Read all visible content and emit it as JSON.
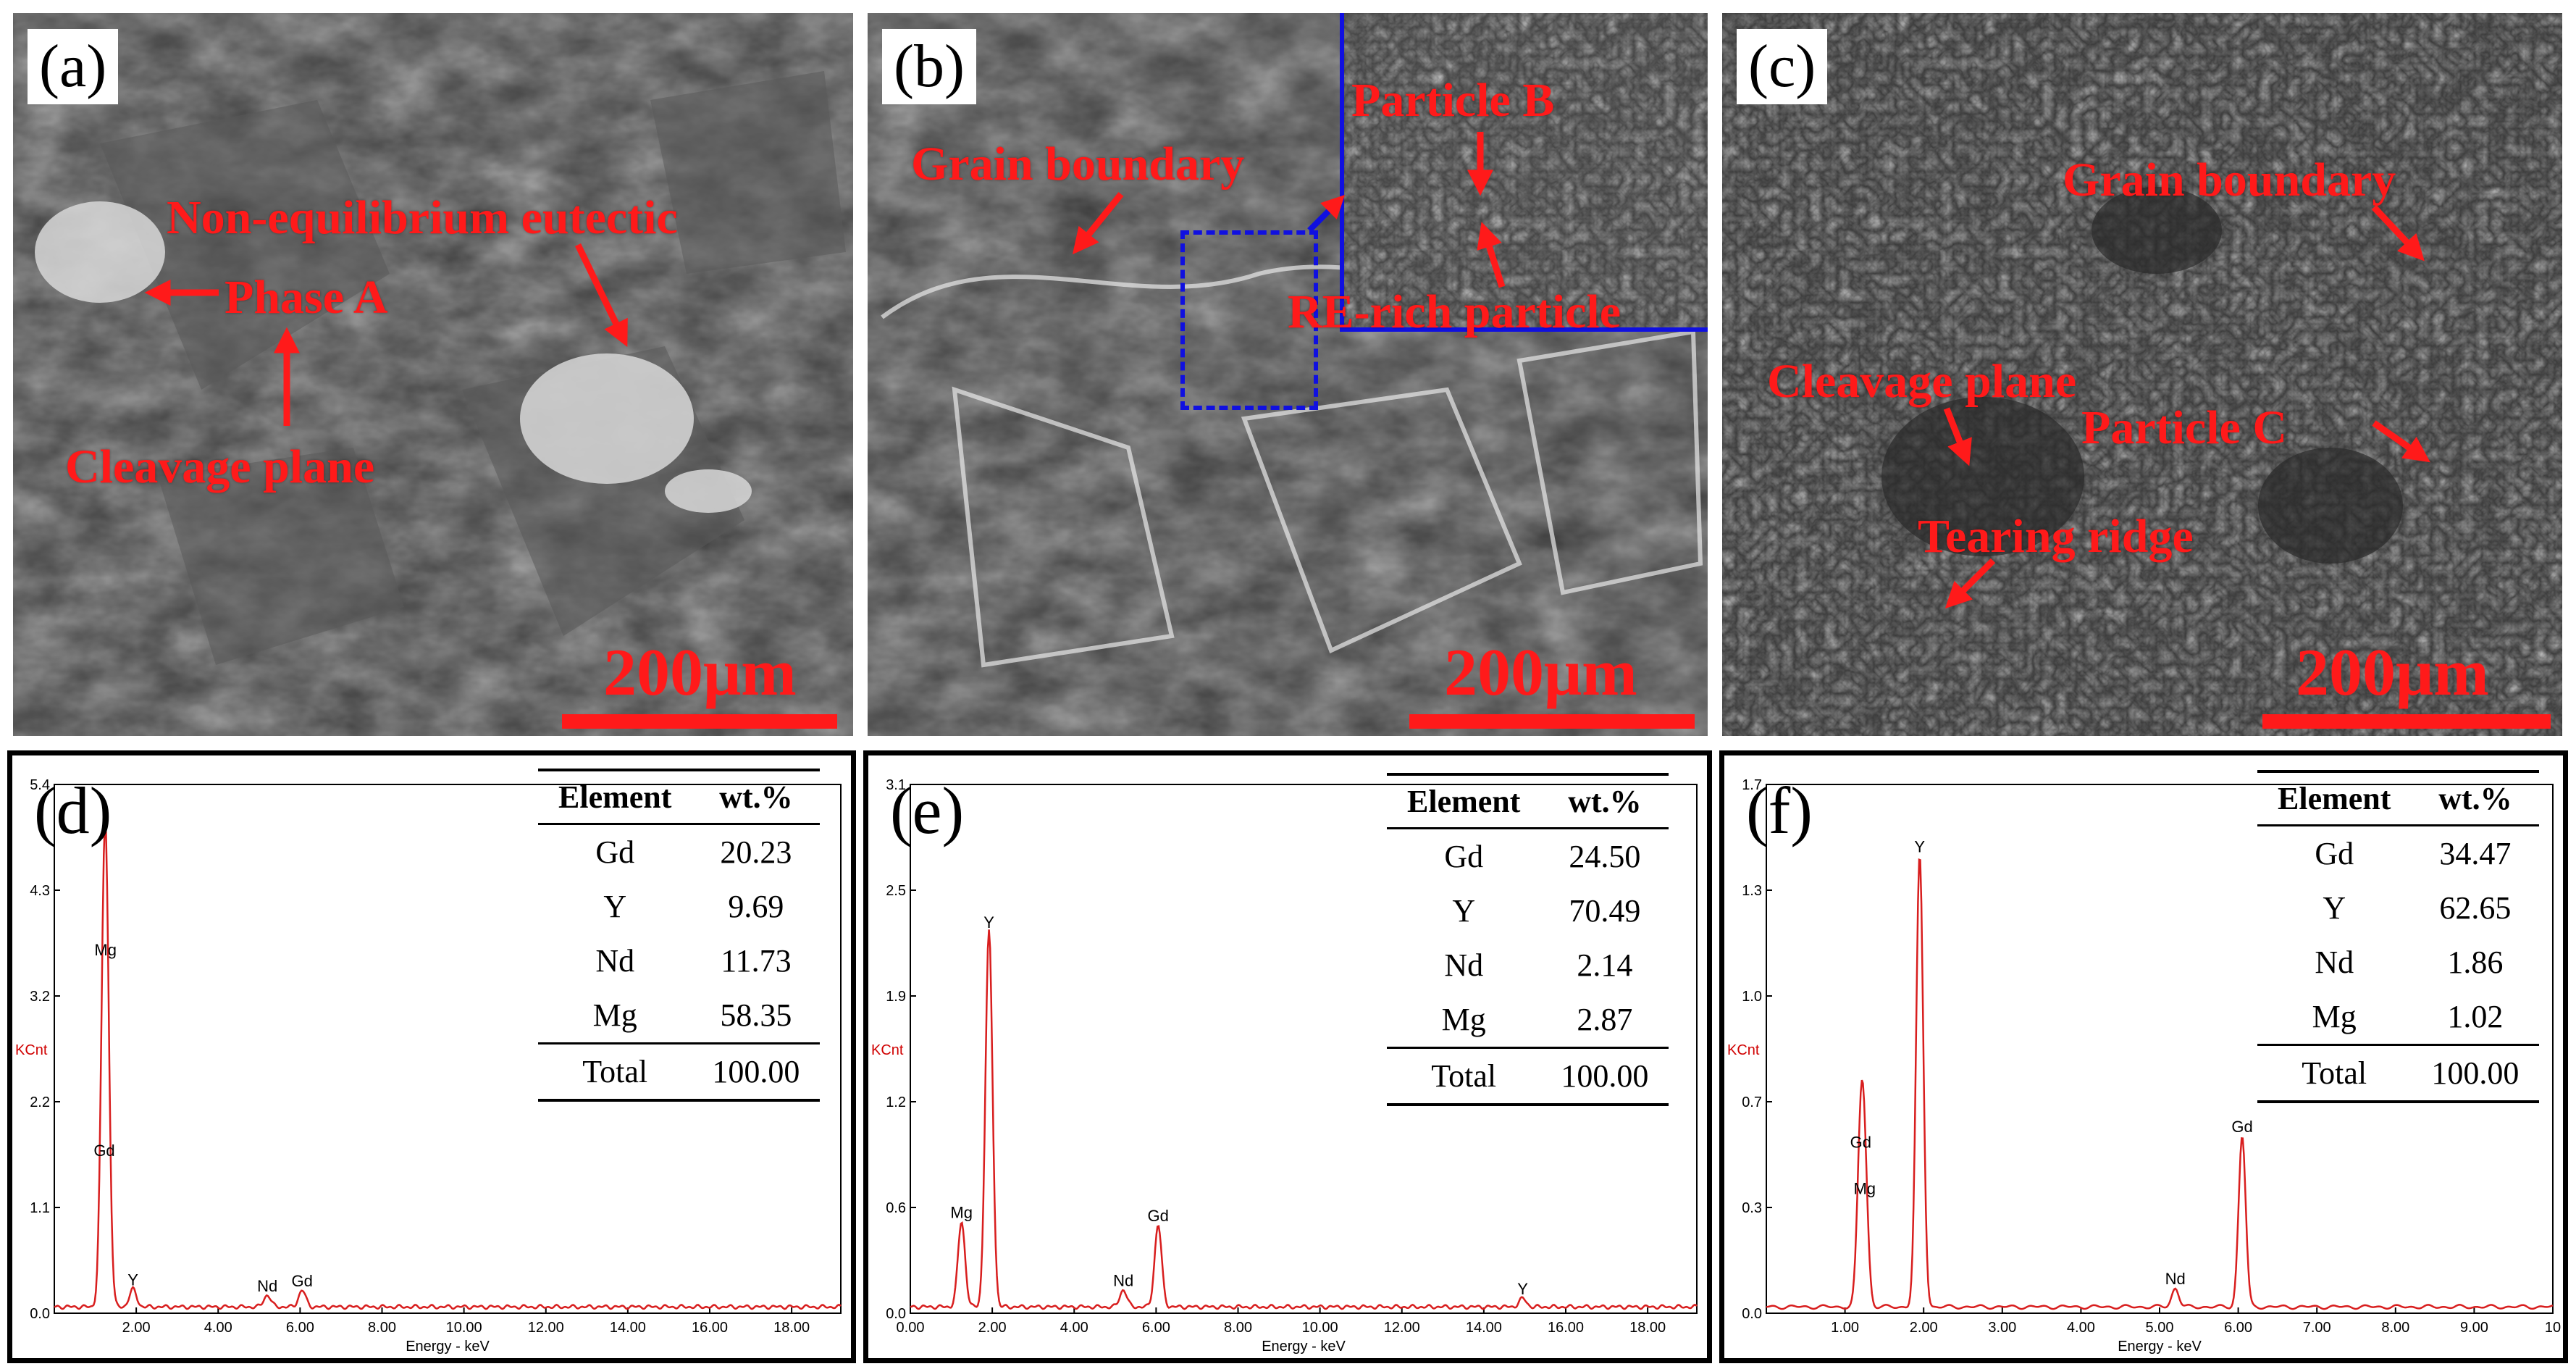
{
  "panels": {
    "a": {
      "letter": "(a)",
      "scale": "200μm",
      "labels": {
        "eutectic": "Non-equilibrium eutectic",
        "phase_a": "Phase A",
        "cleavage": "Cleavage plane"
      }
    },
    "b": {
      "letter": "(b)",
      "scale": "200μm",
      "labels": {
        "grain_boundary": "Grain boundary",
        "particle_b": "Particle B",
        "re_rich": "RE-rich particle"
      }
    },
    "c": {
      "letter": "(c)",
      "scale": "200μm",
      "labels": {
        "grain_boundary": "Grain boundary",
        "cleavage": "Cleavage plane",
        "particle_c": "Particle C",
        "tearing": "Tearing ridge"
      }
    }
  },
  "chart_data": [
    {
      "type": "line",
      "panel": "(d)",
      "xlabel": "Energy - keV",
      "ylabel": "KCnt",
      "xlim": [
        0,
        19.2
      ],
      "ylim": [
        0,
        5.4
      ],
      "x_ticks": [
        "2.00",
        "4.00",
        "6.00",
        "8.00",
        "10.00",
        "12.00",
        "14.00",
        "16.00",
        "18.00"
      ],
      "y_ticks": [
        "0.0",
        "1.1",
        "2.2",
        "3.2",
        "4.3",
        "5.4"
      ],
      "peaks": [
        {
          "label": "Mg",
          "x": 1.25,
          "y": 3.55
        },
        {
          "label": "Gd",
          "x": 1.22,
          "y": 1.5
        },
        {
          "label": "Y",
          "x": 1.92,
          "y": 0.18
        },
        {
          "label": "Nd",
          "x": 5.2,
          "y": 0.12
        },
        {
          "label": "Gd",
          "x": 6.05,
          "y": 0.17
        }
      ],
      "table": {
        "headers": [
          "Element",
          "wt.%"
        ],
        "rows": [
          [
            "Gd",
            "20.23"
          ],
          [
            "Y",
            "9.69"
          ],
          [
            "Nd",
            "11.73"
          ],
          [
            "Mg",
            "58.35"
          ]
        ],
        "total": [
          "Total",
          "100.00"
        ]
      }
    },
    {
      "type": "line",
      "panel": "(e)",
      "xlabel": "Energy - keV",
      "ylabel": "KCnt",
      "xlim": [
        0,
        19.2
      ],
      "ylim": [
        0,
        3.1
      ],
      "x_ticks": [
        "0.00",
        "2.00",
        "4.00",
        "6.00",
        "8.00",
        "10.00",
        "12.00",
        "14.00",
        "16.00",
        "18.00"
      ],
      "y_ticks": [
        "0.0",
        "0.6",
        "1.2",
        "1.9",
        "2.5",
        "3.1"
      ],
      "peaks": [
        {
          "label": "Mg",
          "x": 1.25,
          "y": 0.5
        },
        {
          "label": "Y",
          "x": 1.92,
          "y": 2.2
        },
        {
          "label": "Nd",
          "x": 5.2,
          "y": 0.1
        },
        {
          "label": "Gd",
          "x": 6.05,
          "y": 0.48
        },
        {
          "label": "Y",
          "x": 14.95,
          "y": 0.05
        }
      ],
      "table": {
        "headers": [
          "Element",
          "wt.%"
        ],
        "rows": [
          [
            "Gd",
            "24.50"
          ],
          [
            "Y",
            "70.49"
          ],
          [
            "Nd",
            "2.14"
          ],
          [
            "Mg",
            "2.87"
          ]
        ],
        "total": [
          "Total",
          "100.00"
        ]
      }
    },
    {
      "type": "line",
      "panel": "(f)",
      "xlabel": "Energy - keV",
      "ylabel": "KCnt",
      "xlim": [
        0,
        10
      ],
      "ylim": [
        0,
        1.7
      ],
      "x_ticks": [
        "1.00",
        "2.00",
        "3.00",
        "4.00",
        "5.00",
        "6.00",
        "7.00",
        "8.00",
        "9.00",
        "10"
      ],
      "y_ticks": [
        "0.0",
        "0.3",
        "0.7",
        "1.0",
        "1.3",
        "1.7"
      ],
      "peaks": [
        {
          "label": "Gd",
          "x": 1.2,
          "y": 0.5
        },
        {
          "label": "Mg",
          "x": 1.25,
          "y": 0.35
        },
        {
          "label": "Y",
          "x": 1.95,
          "y": 1.45
        },
        {
          "label": "Nd",
          "x": 5.2,
          "y": 0.06
        },
        {
          "label": "Gd",
          "x": 6.05,
          "y": 0.55
        }
      ],
      "table": {
        "headers": [
          "Element",
          "wt.%"
        ],
        "rows": [
          [
            "Gd",
            "34.47"
          ],
          [
            "Y",
            "62.65"
          ],
          [
            "Nd",
            "1.86"
          ],
          [
            "Mg",
            "1.02"
          ]
        ],
        "total": [
          "Total",
          "100.00"
        ]
      }
    }
  ]
}
